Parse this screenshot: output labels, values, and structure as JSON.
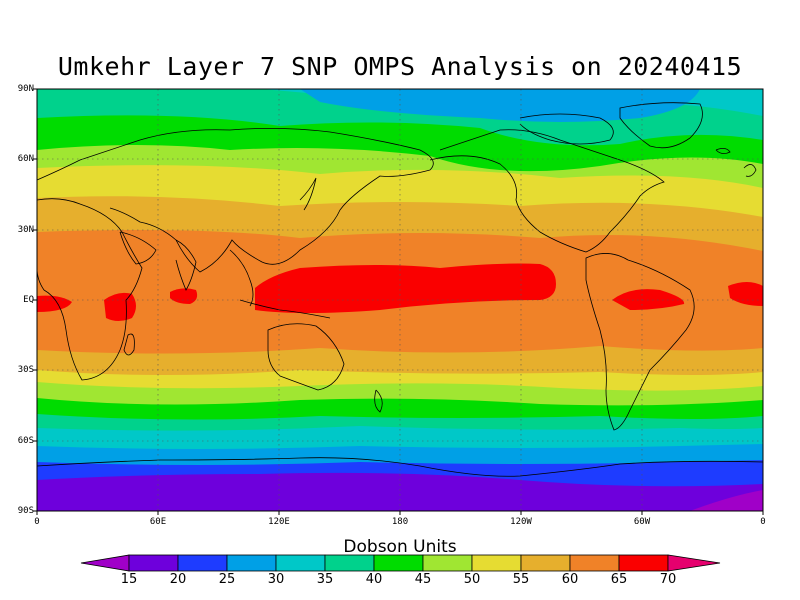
{
  "title": "Umkehr Layer 7 SNP OMPS Analysis on 20240415",
  "lat_labels": [
    "90N",
    "60N",
    "30N",
    "EQ",
    "30S",
    "60S",
    "90S"
  ],
  "lon_labels": [
    "0",
    "60E",
    "120E",
    "180",
    "120W",
    "60W",
    "0"
  ],
  "colorbar": {
    "label": "Dobson Units",
    "ticks": [
      "15",
      "20",
      "25",
      "30",
      "35",
      "40",
      "45",
      "50",
      "55",
      "60",
      "65",
      "70"
    ],
    "colors": [
      "#a000c8",
      "#6e00dc",
      "#1e3cff",
      "#00a0e6",
      "#00c8c8",
      "#00d28c",
      "#00dc00",
      "#a0e632",
      "#e6dc32",
      "#e6af2d",
      "#f08228",
      "#fa0000",
      "#e6006e"
    ]
  },
  "map": {
    "type": "global ozone contour map",
    "bands": [
      {
        "lat_from": 90,
        "lat_to": 84,
        "value": "30-35"
      },
      {
        "lat_from": 84,
        "lat_to": 74,
        "value": "35-40"
      },
      {
        "lat_from": 74,
        "lat_to": 60,
        "value": "40-45"
      },
      {
        "lat_from": 60,
        "lat_to": 52,
        "value": "45-50"
      },
      {
        "lat_from": 52,
        "lat_to": 38,
        "value": "50-55"
      },
      {
        "lat_from": 38,
        "lat_to": 28,
        "value": "55-60"
      },
      {
        "lat_from": 28,
        "lat_to": -22,
        "value": "60-65"
      },
      {
        "lat_from": -22,
        "lat_to": -33,
        "value": "55-60"
      },
      {
        "lat_from": -33,
        "lat_to": -40,
        "value": "50-55"
      },
      {
        "lat_from": -40,
        "lat_to": -46,
        "value": "45-50"
      },
      {
        "lat_from": -46,
        "lat_to": -52,
        "value": "40-45"
      },
      {
        "lat_from": -52,
        "lat_to": -58,
        "value": "35-40"
      },
      {
        "lat_from": -58,
        "lat_to": -66,
        "value": "30-35"
      },
      {
        "lat_from": -66,
        "lat_to": -72,
        "value": "25-30"
      },
      {
        "lat_from": -72,
        "lat_to": -78,
        "value": "20-25"
      },
      {
        "lat_from": -78,
        "lat_to": -90,
        "value": "15-20"
      }
    ],
    "high_regions": [
      "western Pacific / central Pacific equatorial max 65-70",
      "equatorial Africa 65-70",
      "Amazon 65-70"
    ],
    "grid": true
  }
}
